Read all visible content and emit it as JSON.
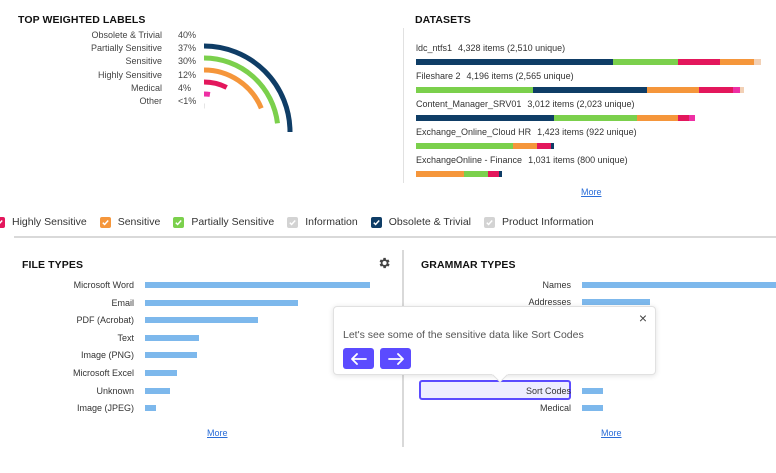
{
  "top_labels": {
    "title": "TOP WEIGHTED LABELS",
    "items": [
      {
        "label": "Obsolete & Trivial",
        "pct": "40%",
        "color": "#0f3d66",
        "fraction": 0.4
      },
      {
        "label": "Partially Sensitive",
        "pct": "37%",
        "color": "#7bd04c",
        "fraction": 0.37
      },
      {
        "label": "Sensitive",
        "pct": "30%",
        "color": "#f5963b",
        "fraction": 0.3
      },
      {
        "label": "Highly Sensitive",
        "pct": "12%",
        "color": "#e3175c",
        "fraction": 0.12
      },
      {
        "label": "Medical",
        "pct": "4%",
        "color": "#ee2fa4",
        "fraction": 0.04
      },
      {
        "label": "Other",
        "pct": "<1%",
        "color": "#cccccc",
        "fraction": 0.005
      }
    ]
  },
  "datasets": {
    "title": "DATASETS",
    "more": "More",
    "rows": [
      {
        "name": "ldc_ntfs1",
        "info": "4,328 items (2,510 unique)",
        "segments": [
          [
            "#0f3d66",
            0.57
          ],
          [
            "#7bd04c",
            0.19
          ],
          [
            "#e3175c",
            0.12
          ],
          [
            "#f5963b",
            0.1
          ],
          [
            "#f2d0b5",
            0.02
          ]
        ]
      },
      {
        "name": "Fileshare 2",
        "info": "4,196 items (2,565 unique)",
        "segments": [
          [
            "#7bd04c",
            0.34
          ],
          [
            "#0f3d66",
            0.33
          ],
          [
            "#f5963b",
            0.15
          ],
          [
            "#e3175c",
            0.1
          ],
          [
            "#ee2fa4",
            0.02
          ],
          [
            "#f2d0b5",
            0.01
          ]
        ]
      },
      {
        "name": "Content_Manager_SRV01",
        "info": "3,012 items (2,023 unique)",
        "segments": [
          [
            "#0f3d66",
            0.4
          ],
          [
            "#7bd04c",
            0.24
          ],
          [
            "#f5963b",
            0.12
          ],
          [
            "#e3175c",
            0.03
          ],
          [
            "#ee2fa4",
            0.02
          ]
        ]
      },
      {
        "name": "Exchange_Online_Cloud HR",
        "info": "1,423 items (922 unique)",
        "segments": [
          [
            "#7bd04c",
            0.28
          ],
          [
            "#f5963b",
            0.07
          ],
          [
            "#e3175c",
            0.04
          ],
          [
            "#0f3d66",
            0.01
          ]
        ]
      },
      {
        "name": "ExchangeOnline - Finance",
        "info": "1,031 items (800 unique)",
        "segments": [
          [
            "#f5963b",
            0.14
          ],
          [
            "#7bd04c",
            0.07
          ],
          [
            "#e3175c",
            0.03
          ],
          [
            "#0f3d66",
            0.01
          ]
        ]
      }
    ]
  },
  "legend": [
    {
      "label": "Highly Sensitive",
      "color": "#e3175c",
      "checked": true
    },
    {
      "label": "Sensitive",
      "color": "#f5963b",
      "checked": true
    },
    {
      "label": "Partially Sensitive",
      "color": "#7bd04c",
      "checked": true
    },
    {
      "label": "Information",
      "color": "#d3d3d3",
      "checked": true
    },
    {
      "label": "Obsolete & Trivial",
      "color": "#0f3d66",
      "checked": true
    },
    {
      "label": "Product Information",
      "color": "#d3d3d3",
      "checked": true
    }
  ],
  "file_types": {
    "title": "FILE TYPES",
    "more": "More",
    "items": [
      {
        "label": "Microsoft Word",
        "value": 1.0
      },
      {
        "label": "Email",
        "value": 0.68
      },
      {
        "label": "PDF (Acrobat)",
        "value": 0.5
      },
      {
        "label": "Text",
        "value": 0.24
      },
      {
        "label": "Image (PNG)",
        "value": 0.23
      },
      {
        "label": "Microsoft Excel",
        "value": 0.14
      },
      {
        "label": "Unknown",
        "value": 0.11
      },
      {
        "label": "Image (JPEG)",
        "value": 0.05
      }
    ]
  },
  "grammar_types": {
    "title": "GRAMMAR TYPES",
    "more": "More",
    "items": [
      {
        "label": "Names",
        "value": 1.0
      },
      {
        "label": "Addresses",
        "value": 0.35
      },
      {
        "label": "Sort Codes",
        "value": 0.11
      },
      {
        "label": "Medical",
        "value": 0.11
      }
    ]
  },
  "tooltip": {
    "text": "Let's see some of the sensitive data like Sort Codes",
    "close": "×"
  }
}
